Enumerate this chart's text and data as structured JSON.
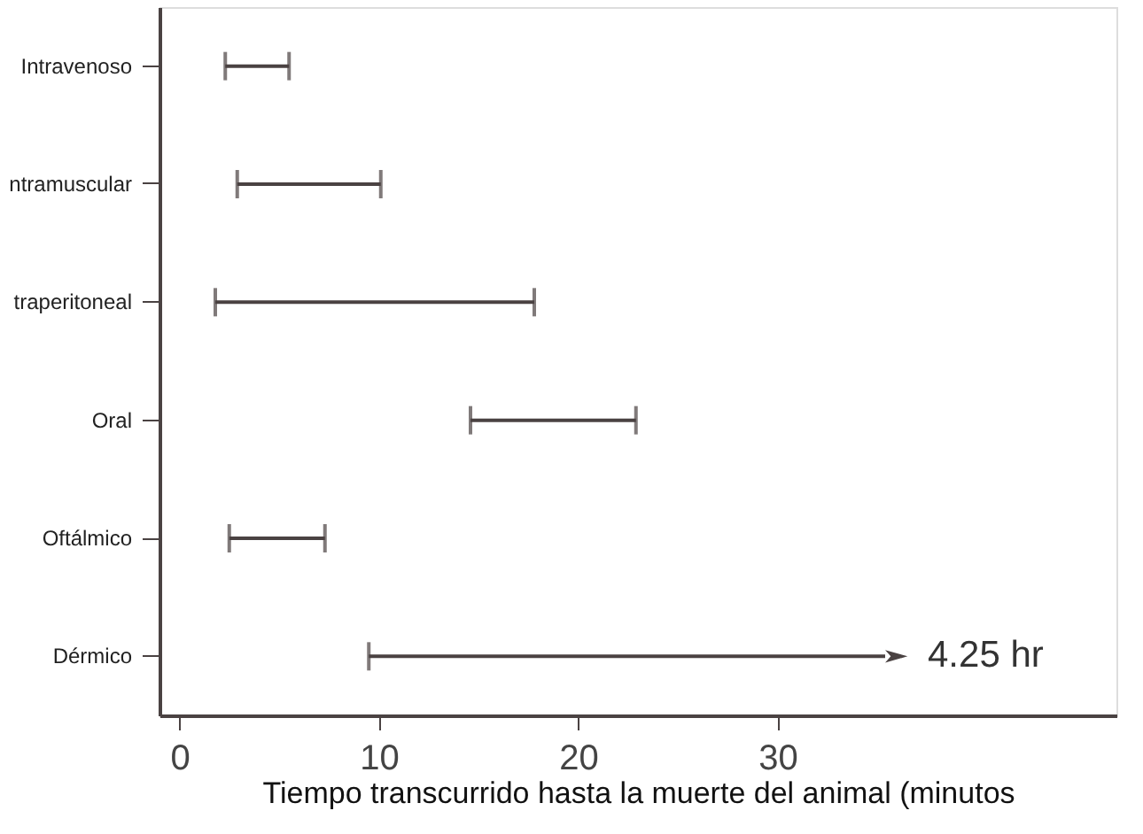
{
  "chart_data": {
    "type": "bar",
    "orientation": "horizontal",
    "categories": [
      "Intravenoso",
      "ntramuscular",
      "traperitoneal",
      "Oral",
      "Oftálmico",
      "Dérmico"
    ],
    "base": [
      2.3,
      2.9,
      1.8,
      14.6,
      2.5,
      9.5
    ],
    "values": [
      3.2,
      7.2,
      16.0,
      8.3,
      4.8,
      25.9
    ],
    "annotations": [
      "4.25 hr"
    ],
    "color": "#4a4242",
    "xlim": [
      -1,
      47
    ],
    "xticks": [
      0,
      10,
      20,
      30
    ],
    "xlabel": "Tiempo transcurrido hasta la muerte del animal (minutos",
    "grid": false
  }
}
